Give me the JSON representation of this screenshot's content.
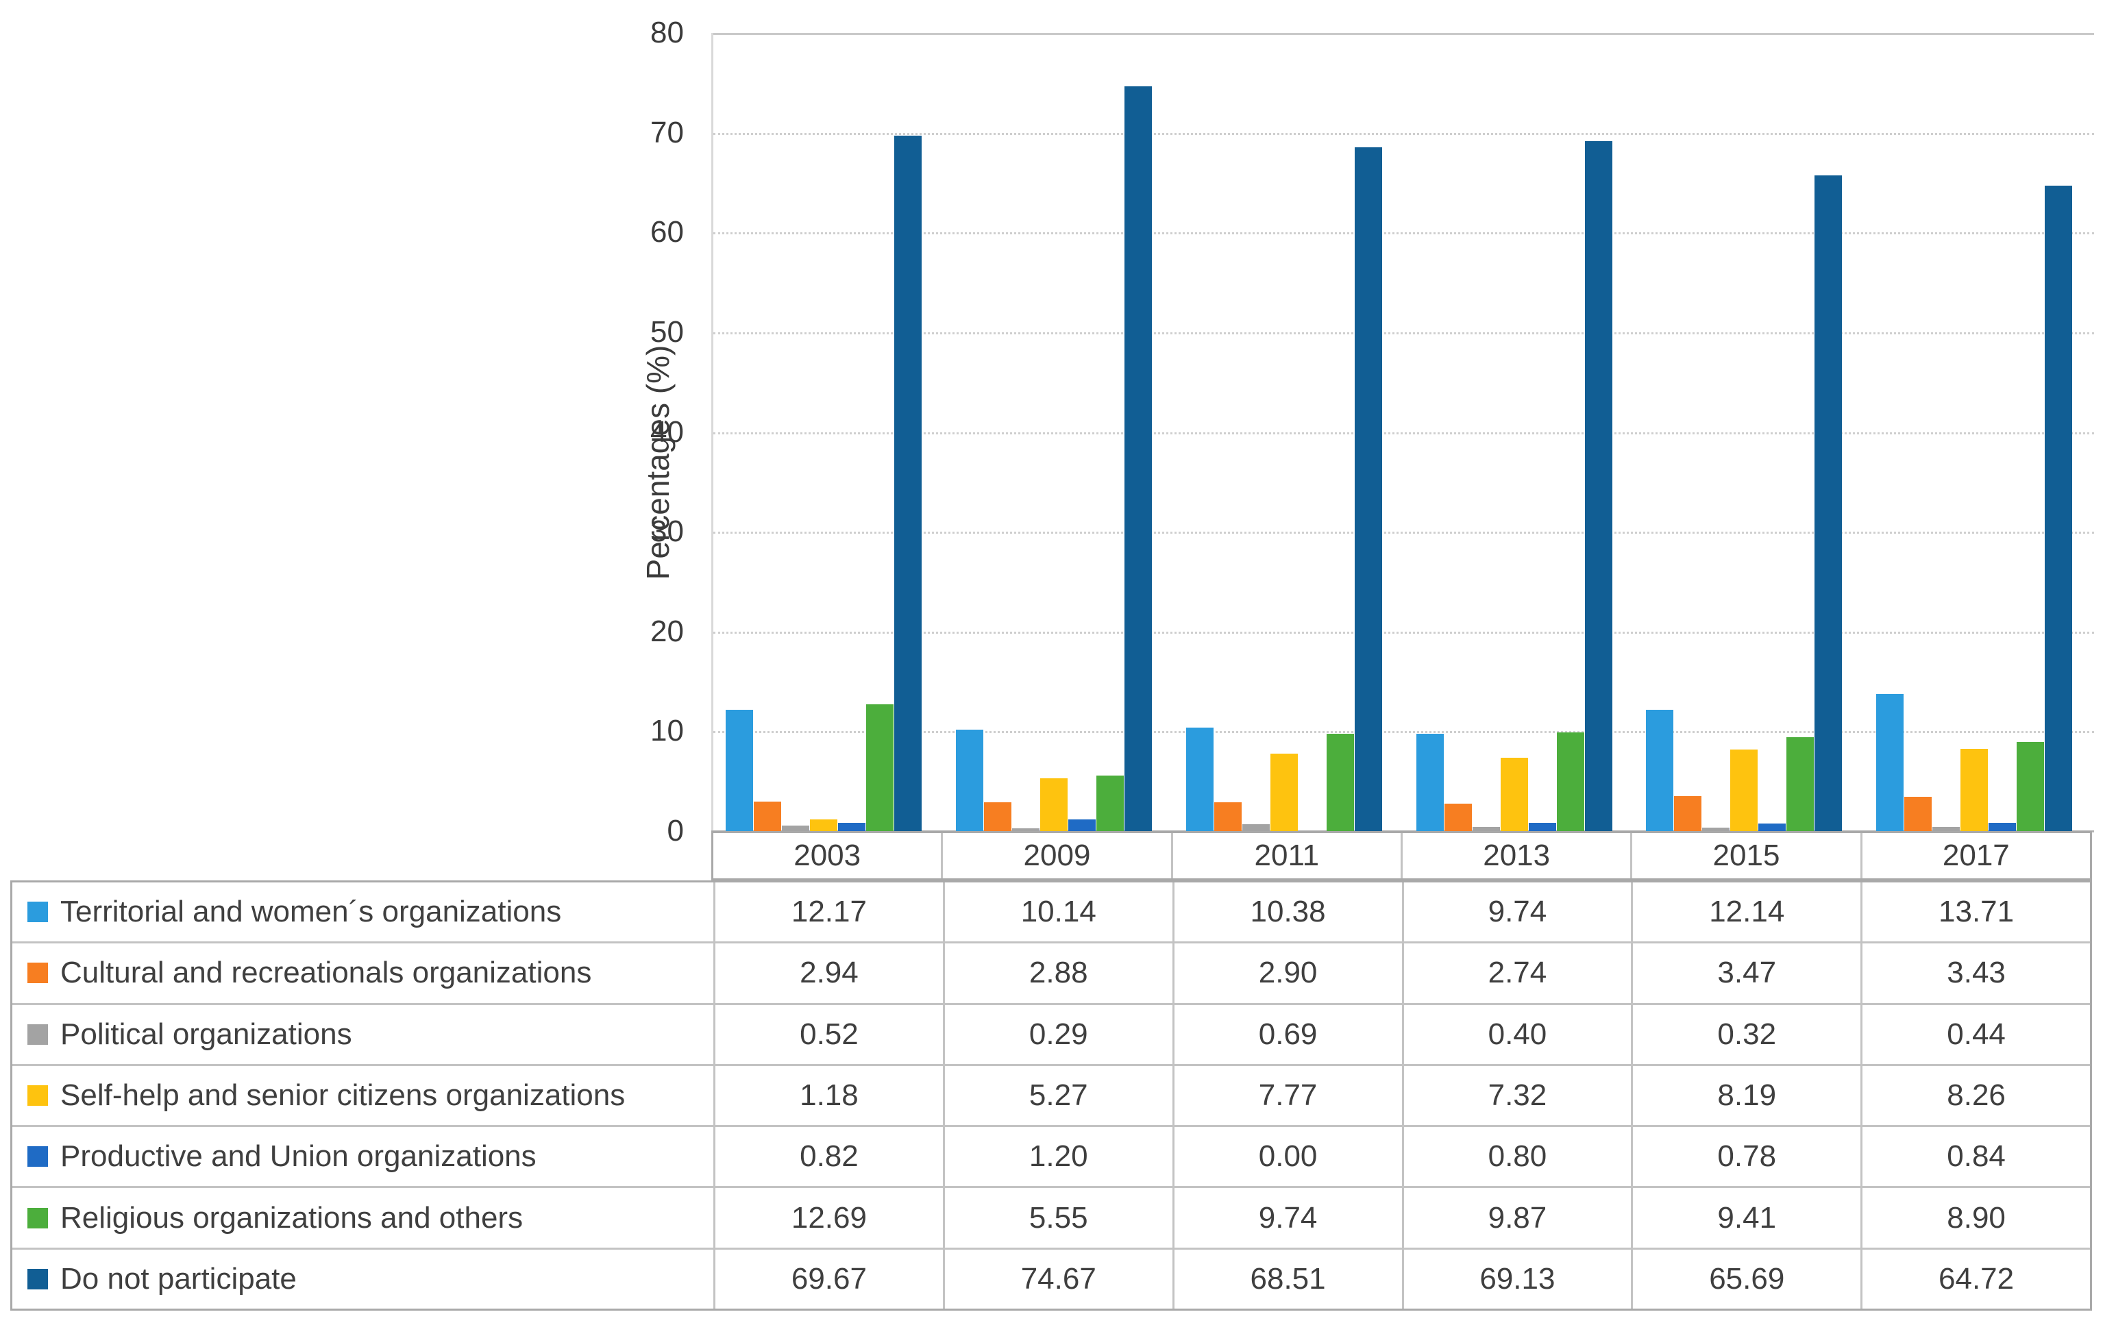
{
  "chart_data": {
    "type": "bar",
    "title": "",
    "xlabel": "",
    "ylabel": "Percentages (%)",
    "ylim": [
      0,
      80
    ],
    "ytick_step": 10,
    "yticks": [
      "80",
      "70",
      "60",
      "50",
      "40",
      "30",
      "20",
      "10",
      "0"
    ],
    "grid": true,
    "legend_position": "table-rows-left",
    "categories": [
      "2003",
      "2009",
      "2011",
      "2013",
      "2015",
      "2017"
    ],
    "series": [
      {
        "name": "Territorial and women´s organizations",
        "color": "#2b9cde",
        "values": [
          12.17,
          10.14,
          10.38,
          9.74,
          12.14,
          13.71
        ]
      },
      {
        "name": "Cultural and recreationals organizations",
        "color": "#f77e21",
        "values": [
          2.94,
          2.88,
          2.9,
          2.74,
          3.47,
          3.43
        ]
      },
      {
        "name": "Political organizations",
        "color": "#a3a3a3",
        "values": [
          0.52,
          0.29,
          0.69,
          0.4,
          0.32,
          0.44
        ]
      },
      {
        "name": "Self-help and senior citizens organizations",
        "color": "#fec30f",
        "values": [
          1.18,
          5.27,
          7.77,
          7.32,
          8.19,
          8.26
        ]
      },
      {
        "name": "Productive and Union organizations",
        "color": "#1f6bc5",
        "values": [
          0.82,
          1.2,
          0.0,
          0.8,
          0.78,
          0.84
        ]
      },
      {
        "name": "Religious organizations and others",
        "color": "#4cae3c",
        "values": [
          12.69,
          5.55,
          9.74,
          9.87,
          9.41,
          8.9
        ]
      },
      {
        "name": "Do not participate",
        "color": "#115e94",
        "values": [
          69.67,
          74.67,
          68.51,
          69.13,
          65.69,
          64.72
        ]
      }
    ],
    "value_decimals": 2
  }
}
